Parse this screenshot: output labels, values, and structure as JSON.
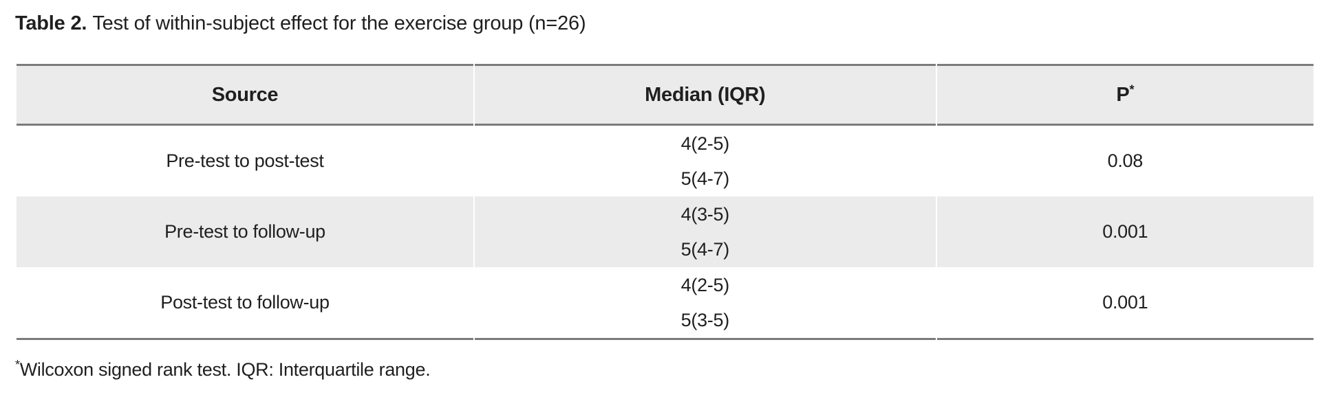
{
  "caption": {
    "label": "Table 2.",
    "text": "Test of within-subject effect for the exercise group (n=26)"
  },
  "table": {
    "columns": {
      "source": "Source",
      "median": "Median (IQR)",
      "p": "P",
      "p_marker": "*"
    },
    "rows": [
      {
        "source": "Pre-test to post-test",
        "median_line1": "4(2-5)",
        "median_line2": "5(4-7)",
        "p": "0.08"
      },
      {
        "source": "Pre-test to follow-up",
        "median_line1": "4(3-5)",
        "median_line2": "5(4-7)",
        "p": "0.001"
      },
      {
        "source": "Post-test to follow-up",
        "median_line1": "4(2-5)",
        "median_line2": "5(3-5)",
        "p": "0.001"
      }
    ]
  },
  "footnote": {
    "marker": "*",
    "text": "Wilcoxon signed rank test. IQR: Interquartile range."
  },
  "colors": {
    "header_bg": "#ebebeb",
    "stripe_bg": "#ebebeb",
    "rule": "#7b7b7b",
    "text": "#1f1f1f"
  }
}
